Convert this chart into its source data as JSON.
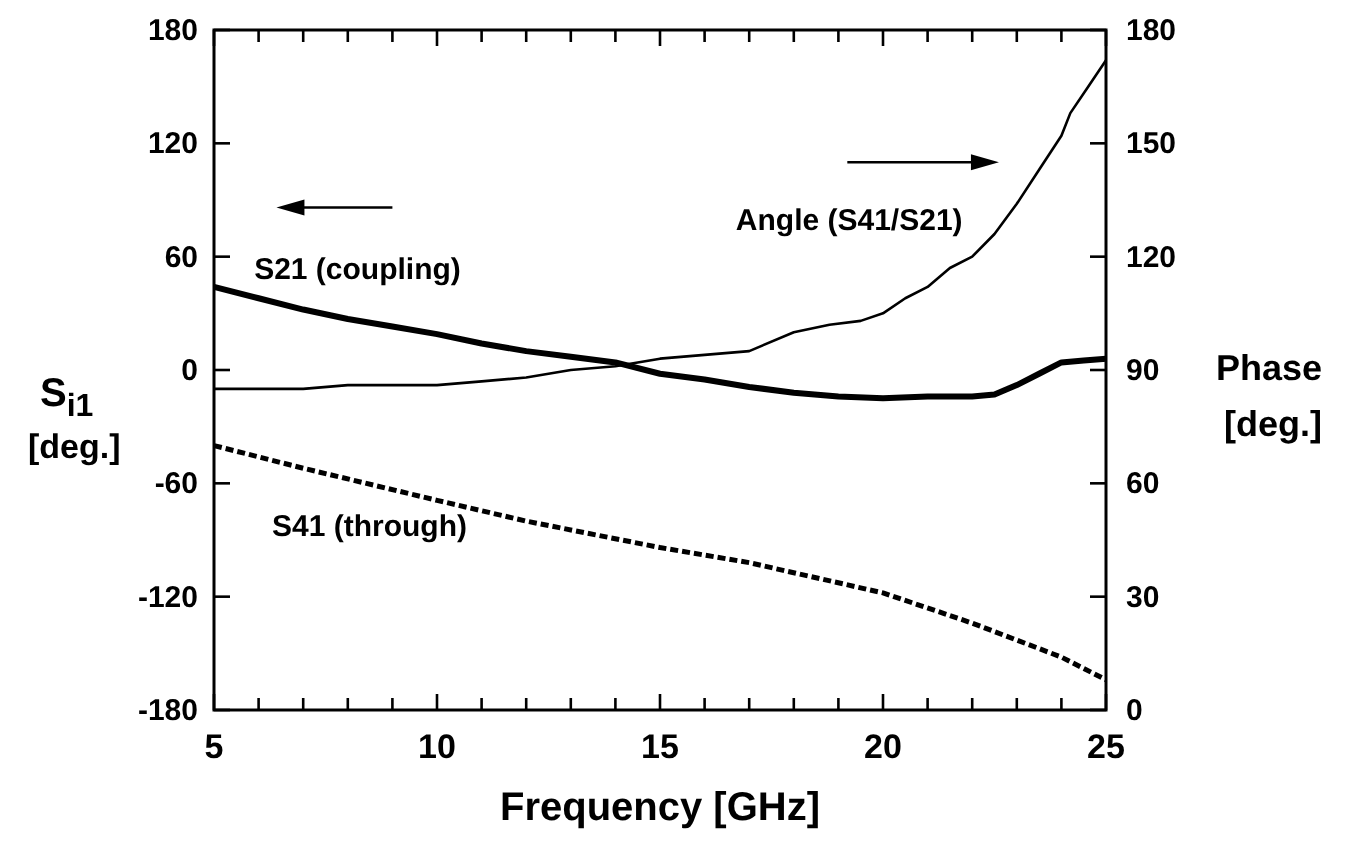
{
  "chart_data": {
    "type": "line",
    "xlabel": "Frequency [GHz]",
    "ylabel": "S$_{i1}$ [deg.]",
    "y2label": "Phase [deg.]",
    "xlim": [
      5,
      25
    ],
    "xticks": [
      5,
      {
        "value": 6,
        "label": null
      },
      {
        "value": 7,
        "label": null
      },
      {
        "value": 8,
        "label": null
      },
      {
        "value": 9,
        "label": null
      },
      10,
      {
        "value": 11,
        "label": null
      },
      {
        "value": 12,
        "label": null
      },
      {
        "value": 13,
        "label": null
      },
      {
        "value": 14,
        "label": null
      },
      15,
      {
        "value": 16,
        "label": null
      },
      {
        "value": 17,
        "label": null
      },
      {
        "value": 18,
        "label": null
      },
      {
        "value": 19,
        "label": null
      },
      20,
      {
        "value": 21,
        "label": null
      },
      {
        "value": 22,
        "label": null
      },
      {
        "value": 23,
        "label": null
      },
      {
        "value": 24,
        "label": null
      },
      25
    ],
    "ylim": [
      -180,
      180
    ],
    "yticks": [
      -180,
      -120,
      -60,
      0,
      60,
      120,
      180
    ],
    "y2lim": [
      0,
      180
    ],
    "y2ticks": [
      0,
      30,
      60,
      90,
      120,
      150,
      180
    ],
    "grid": false,
    "series": [
      {
        "name": "S21 (coupling)",
        "color": "#000000",
        "line_style": "solid",
        "x": [
          5,
          6,
          7,
          8,
          9,
          10,
          11,
          12,
          13,
          14,
          15,
          16,
          17,
          18,
          19,
          20,
          21,
          22,
          22.5,
          23,
          23.5,
          24,
          24.5,
          25
        ],
        "values": [
          44,
          38,
          32,
          27,
          23,
          19,
          14,
          10,
          7,
          4,
          -2,
          -5,
          -9,
          -12,
          -14,
          -15,
          -14,
          -14,
          -13,
          -8,
          -2,
          4,
          5,
          6
        ]
      },
      {
        "name": "Angle (S41/S21)",
        "color": "#000000",
        "line_style": "solid",
        "axis": "y2",
        "x": [
          5,
          6,
          7,
          8,
          9,
          10,
          11,
          12,
          13,
          14,
          15,
          16,
          17,
          18,
          18.8,
          19.5,
          20,
          20.5,
          21,
          21.5,
          22,
          22.5,
          23,
          23.5,
          24,
          24.2,
          24.6,
          25
        ],
        "values": [
          85,
          85,
          85,
          86,
          86,
          86,
          87,
          88,
          90,
          91,
          93,
          94,
          95,
          100,
          102,
          103,
          105,
          109,
          112,
          117,
          120,
          126,
          134,
          143,
          152,
          158,
          165,
          172
        ]
      },
      {
        "name": "S41 (through)",
        "color": "#000000",
        "line_style": "dashed",
        "x": [
          5,
          7,
          10,
          12,
          15,
          17,
          20,
          22,
          24,
          25
        ],
        "values": [
          -40,
          -52,
          -69,
          -80,
          -94,
          -102,
          -118,
          -134,
          -152,
          -164
        ]
      }
    ]
  }
}
